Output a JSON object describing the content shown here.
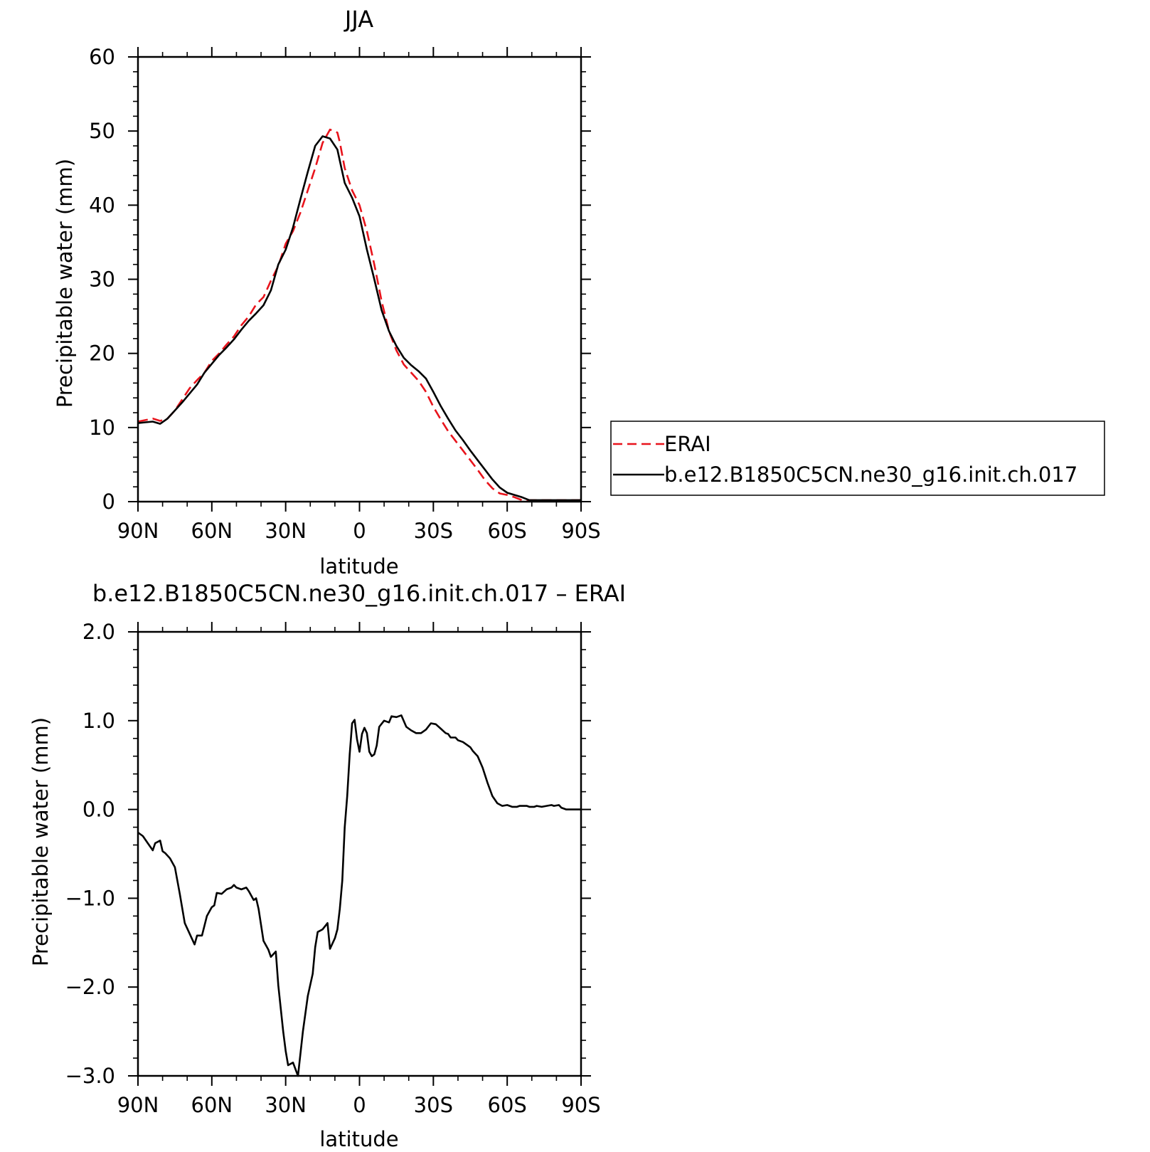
{
  "chart_data": [
    {
      "type": "line",
      "title": "JJA",
      "xlabel": "latitude",
      "ylabel": "Precipitable water (mm)",
      "xlim": [
        90,
        -90
      ],
      "ylim": [
        0,
        60
      ],
      "x_ticks": [
        {
          "value": 90,
          "label": "90N"
        },
        {
          "value": 60,
          "label": "60N"
        },
        {
          "value": 30,
          "label": "30N"
        },
        {
          "value": 0,
          "label": "0"
        },
        {
          "value": -30,
          "label": "30S"
        },
        {
          "value": -60,
          "label": "60S"
        },
        {
          "value": -90,
          "label": "90S"
        }
      ],
      "y_ticks": [
        {
          "value": 0,
          "label": "0"
        },
        {
          "value": 10,
          "label": "10"
        },
        {
          "value": 20,
          "label": "20"
        },
        {
          "value": 30,
          "label": "30"
        },
        {
          "value": 40,
          "label": "40"
        },
        {
          "value": 50,
          "label": "50"
        },
        {
          "value": 60,
          "label": "60"
        }
      ],
      "grid": false,
      "legend_position": "right",
      "series": [
        {
          "name": "ERAI",
          "color": "#e8141c",
          "dash": "dashed",
          "x": [
            90,
            87,
            84,
            81,
            78,
            75,
            72,
            69,
            66,
            63,
            60,
            57,
            54,
            51,
            48,
            45,
            42,
            39,
            36,
            33,
            30,
            27,
            24,
            21,
            18,
            15,
            12,
            9,
            8,
            6,
            3,
            0,
            -3,
            -6,
            -9,
            -12,
            -15,
            -18,
            -21,
            -24,
            -27,
            -30,
            -33,
            -36,
            -39,
            -42,
            -45,
            -48,
            -51,
            -54,
            -57,
            -60,
            -63,
            -66,
            -69,
            -72,
            -75,
            -78,
            -81,
            -84,
            -87,
            -90
          ],
          "y": [
            10.8,
            11.0,
            11.2,
            10.9,
            11.2,
            12.3,
            13.8,
            15.3,
            16.4,
            17.4,
            19.0,
            20.0,
            21.2,
            22.3,
            23.8,
            25.0,
            26.6,
            27.6,
            29.8,
            31.8,
            34.8,
            36.5,
            39.0,
            42.0,
            45.0,
            48.4,
            50.2,
            49.8,
            48.5,
            45.0,
            42.0,
            40.0,
            36.5,
            32.0,
            27.0,
            23.0,
            20.4,
            18.5,
            17.4,
            16.3,
            14.8,
            12.8,
            11.1,
            9.5,
            8.2,
            6.9,
            5.6,
            4.3,
            2.9,
            1.8,
            1.1,
            0.9,
            0.6,
            0.2,
            0.2,
            0.2,
            0.2,
            0.2,
            0.2,
            0.2,
            0.2,
            0.2
          ]
        },
        {
          "name": "b.e12.B1850C5CN.ne30_g16.init.ch.017",
          "color": "#000000",
          "dash": "solid",
          "x": [
            90,
            87,
            84,
            81,
            78,
            75,
            72,
            69,
            66,
            63,
            60,
            57,
            54,
            51,
            48,
            45,
            42,
            39,
            36,
            33,
            30,
            27,
            24,
            21,
            18,
            15,
            12,
            9,
            8,
            6,
            3,
            0,
            -3,
            -6,
            -9,
            -12,
            -15,
            -18,
            -21,
            -24,
            -27,
            -30,
            -33,
            -36,
            -39,
            -42,
            -45,
            -48,
            -51,
            -54,
            -57,
            -60,
            -63,
            -66,
            -69,
            -72,
            -75,
            -78,
            -81,
            -84,
            -87,
            -90
          ],
          "y": [
            10.6,
            10.7,
            10.8,
            10.5,
            11.2,
            12.3,
            13.4,
            14.6,
            15.8,
            17.4,
            18.6,
            19.8,
            20.8,
            21.9,
            23.2,
            24.4,
            25.4,
            26.5,
            28.5,
            32.0,
            34.0,
            37.0,
            40.8,
            44.5,
            48.0,
            49.3,
            49.0,
            47.5,
            46.0,
            43.0,
            41.0,
            38.5,
            34.0,
            30.0,
            25.8,
            23.0,
            21.0,
            19.4,
            18.4,
            17.6,
            16.6,
            14.8,
            12.9,
            11.2,
            9.6,
            8.3,
            6.9,
            5.6,
            4.3,
            3.0,
            1.9,
            1.2,
            0.9,
            0.6,
            0.2,
            0.2,
            0.2,
            0.2,
            0.2,
            0.2,
            0.2,
            0.2
          ]
        }
      ]
    },
    {
      "type": "line",
      "title": "b.e12.B1850C5CN.ne30_g16.init.ch.017 – ERAI",
      "xlabel": "latitude",
      "ylabel": "Precipitable water (mm)",
      "xlim": [
        90,
        -90
      ],
      "ylim": [
        -3.0,
        2.0
      ],
      "x_ticks": [
        {
          "value": 90,
          "label": "90N"
        },
        {
          "value": 60,
          "label": "60N"
        },
        {
          "value": 30,
          "label": "30N"
        },
        {
          "value": 0,
          "label": "0"
        },
        {
          "value": -30,
          "label": "30S"
        },
        {
          "value": -60,
          "label": "60S"
        },
        {
          "value": -90,
          "label": "90S"
        }
      ],
      "y_ticks": [
        {
          "value": -3.0,
          "label": "−3.0"
        },
        {
          "value": -2.0,
          "label": "−2.0"
        },
        {
          "value": -1.0,
          "label": "−1.0"
        },
        {
          "value": 0.0,
          "label": "0.0"
        },
        {
          "value": 1.0,
          "label": "1.0"
        },
        {
          "value": 2.0,
          "label": "2.0"
        }
      ],
      "grid": false,
      "series": [
        {
          "color": "#000000",
          "dash": "solid",
          "x": [
            90,
            88,
            86,
            84,
            83,
            81,
            80,
            79,
            77,
            75,
            73,
            71,
            69,
            67,
            66,
            64,
            62,
            60,
            59,
            58,
            56,
            54,
            52,
            51,
            50,
            48,
            46,
            45,
            43,
            42,
            41,
            39,
            37,
            36,
            34,
            33,
            31,
            30,
            29,
            27,
            25,
            23,
            21,
            19,
            18,
            17,
            15,
            13,
            12,
            10,
            9,
            8,
            7,
            6,
            5,
            4,
            3,
            2,
            1,
            0,
            -1,
            -2,
            -3,
            -4,
            -5,
            -6,
            -7,
            -8,
            -10,
            -12,
            -13,
            -15,
            -17,
            -19,
            -21,
            -23,
            -25,
            -27,
            -29,
            -31,
            -33,
            -35,
            -36,
            -37,
            -39,
            -40,
            -42,
            -43,
            -45,
            -46,
            -48,
            -50,
            -52,
            -54,
            -56,
            -58,
            -60,
            -62,
            -64,
            -65,
            -67,
            -68,
            -69,
            -71,
            -72,
            -74,
            -76,
            -78,
            -79,
            -81,
            -82,
            -84,
            -86,
            -87,
            -88,
            -90
          ],
          "y": [
            -0.26,
            -0.3,
            -0.38,
            -0.46,
            -0.38,
            -0.35,
            -0.47,
            -0.49,
            -0.55,
            -0.65,
            -0.95,
            -1.28,
            -1.4,
            -1.52,
            -1.42,
            -1.42,
            -1.2,
            -1.1,
            -1.08,
            -0.94,
            -0.95,
            -0.9,
            -0.88,
            -0.85,
            -0.88,
            -0.9,
            -0.88,
            -0.92,
            -1.02,
            -1.0,
            -1.12,
            -1.48,
            -1.58,
            -1.66,
            -1.6,
            -1.98,
            -2.5,
            -2.72,
            -2.88,
            -2.85,
            -3.0,
            -2.5,
            -2.1,
            -1.85,
            -1.55,
            -1.38,
            -1.35,
            -1.28,
            -1.57,
            -1.45,
            -1.35,
            -1.12,
            -0.8,
            -0.2,
            0.15,
            0.62,
            0.97,
            1.01,
            0.79,
            0.65,
            0.85,
            0.92,
            0.86,
            0.65,
            0.6,
            0.62,
            0.72,
            0.93,
            1.0,
            0.98,
            1.05,
            1.04,
            1.06,
            0.93,
            0.89,
            0.86,
            0.86,
            0.9,
            0.97,
            0.96,
            0.91,
            0.86,
            0.85,
            0.81,
            0.81,
            0.78,
            0.76,
            0.74,
            0.7,
            0.66,
            0.6,
            0.47,
            0.3,
            0.15,
            0.07,
            0.04,
            0.05,
            0.03,
            0.03,
            0.04,
            0.04,
            0.04,
            0.03,
            0.03,
            0.04,
            0.03,
            0.04,
            0.05,
            0.04,
            0.05,
            0.02,
            0.0,
            0.0,
            0.0,
            0.0,
            0.0
          ]
        }
      ]
    }
  ]
}
